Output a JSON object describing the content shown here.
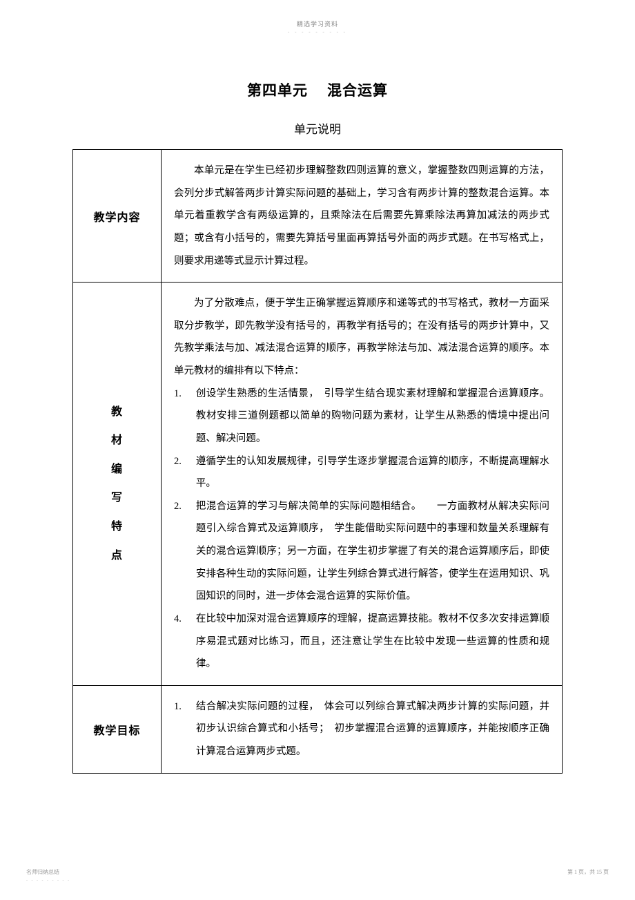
{
  "header": {
    "label": "精选学习资料",
    "dots": "- - - - - - - - -"
  },
  "title": {
    "part1": "第四单元",
    "part2": "混合运算"
  },
  "subtitle": "单元说明",
  "rows": {
    "r1": {
      "label": "教学内容",
      "para1": "本单元是在学生已经初步理解整数四则运算的意义，掌握整数四则运算的方法，会列分步式解答两步计算实际问题的基础上，学习含有两步计算的整数混合运算。本单元着重教学含有两级运算的，且乘除法在后需要先算乘除法再算加减法的两步式题；或含有小括号的，需要先算括号里面再算括号外面的两步式题。在书写格式上，则要求用递等式显示计算过程。"
    },
    "r2": {
      "label_chars": [
        "教",
        "材",
        "编",
        "写",
        "特",
        "点"
      ],
      "intro": "为了分散难点，便于学生正确掌握运算顺序和递等式的书写格式，教材一方面采取分步教学，即先教学没有括号的，再教学有括号的；在没有括号的两步计算中，又先教学乘法与加、减法混合运算的顺序，再教学除法与加、减法混合运算的顺序。本单元教材的编排有以下特点：",
      "items": [
        {
          "num": "1.",
          "text": "创设学生熟悉的生活情景，　引导学生结合现实素材理解和掌握混合运算顺序。教材安排三道例题都以简单的购物问题为素材，让学生从熟悉的情境中提出问题、解决问题。"
        },
        {
          "num": "2.",
          "text": "遵循学生的认知发展规律，引导学生逐步掌握混合运算的顺序，不断提高理解水平。"
        },
        {
          "num": "2.",
          "text": "把混合运算的学习与解决简单的实际问题相结合。　　一方面教材从解决实际问题引入综合算式及运算顺序，　学生能借助实际问题中的事理和数量关系理解有关的混合运算顺序；另一方面，在学生初步掌握了有关的混合运算顺序后，即使安排各种生动的实际问题，让学生列综合算式进行解答，使学生在运用知识、巩固知识的同时，进一步体会混合运算的实际价值。"
        },
        {
          "num": "4.",
          "text": "在比较中加深对混合运算顺序的理解，提高运算技能。教材不仅多次安排运算顺序易混式题对比练习，而且，还注意让学生在比较中发现一些运算的性质和规律。"
        }
      ]
    },
    "r3": {
      "label": "教学目标",
      "items": [
        {
          "num": "1.",
          "text": "结合解决实际问题的过程，　体会可以列综合算式解决两步计算的实际问题，并初步认识综合算式和小括号；　初步掌握混合运算的运算顺序，并能按顺序正确计算混合运算两步式题。"
        }
      ]
    }
  },
  "footer": {
    "left": "名师归纳总结",
    "dots": "- - - - - - - - -",
    "right": "第 1 页，共 15 页"
  }
}
